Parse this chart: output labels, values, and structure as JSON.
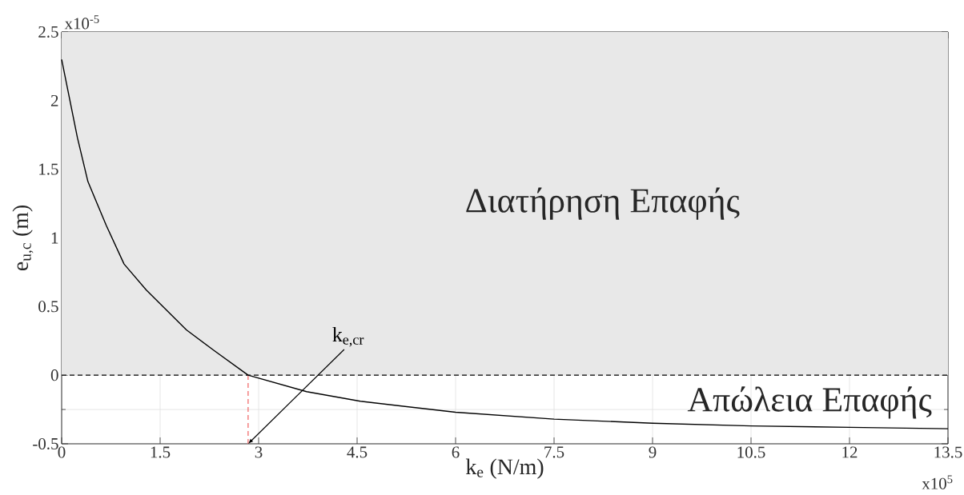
{
  "chart_data": {
    "type": "line",
    "xlabel": "k$_{e}$  (N/m)",
    "ylabel": "e$_{u,c}$  (m)",
    "x": [
      0,
      0.24,
      0.4,
      0.68,
      0.95,
      1.29,
      1.9,
      2.32,
      2.84,
      3.73,
      4.55,
      6,
      7.5,
      9,
      10.5,
      12,
      13.5
    ],
    "series": [
      {
        "color": "#000000",
        "values": [
          2.3,
          1.73,
          1.41,
          1.09,
          0.81,
          0.62,
          0.33,
          0.18,
          0,
          -0.12,
          -0.19,
          -0.27,
          -0.32,
          -0.35,
          -0.37,
          -0.38,
          -0.39
        ]
      }
    ],
    "xlim": [
      0,
      13.5
    ],
    "ylim": [
      -0.5,
      2.5
    ],
    "xticks": [
      0,
      1.5,
      3,
      4.5,
      6,
      7.5,
      9,
      10.5,
      12,
      13.5
    ],
    "yticks": [
      -0.5,
      0,
      0.5,
      1,
      1.5,
      2,
      2.5
    ],
    "grid": true,
    "marker": "none",
    "line_style": "solid",
    "bands": [
      {
        "axis": "y",
        "from": 0,
        "to": 2.5,
        "label": "Διατήρηση Επαφής",
        "color": "#e8e8e8"
      }
    ],
    "ref_lines": [
      {
        "axis": "y",
        "value": 0,
        "color": "#000000",
        "line_style": "dashed"
      },
      {
        "axis": "x",
        "value": 2.84,
        "color": "#f06060",
        "line_style": "dashed"
      }
    ],
    "annotations": [
      "x10$^{-5}$",
      "x10$^{5}$",
      "Απώλεια Επαφής",
      {
        "text": "k$_{e,cr}$",
        "x": 2.84,
        "y": -0.5
      }
    ]
  }
}
